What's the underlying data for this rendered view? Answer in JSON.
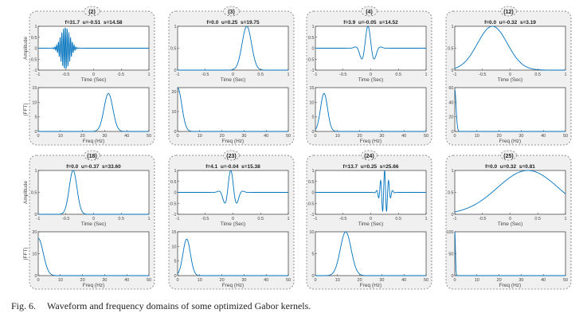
{
  "caption": {
    "label": "Fig. 6.",
    "text": "Waveform and frequency domains of some optimized Gabor kernels."
  },
  "chart_data": {
    "type": "line",
    "time_axis": {
      "xlabel": "Time (Sec)",
      "xlim": [
        -1,
        1
      ],
      "xticks": [
        -1,
        -0.5,
        0,
        0.5,
        1
      ],
      "xtick_labels": [
        "-1",
        "-0.5",
        "0",
        "0.5",
        "1"
      ],
      "ylabel": "Amplitude"
    },
    "freq_axis": {
      "xlabel": "Freq (Hz)",
      "xlim": [
        0,
        50
      ],
      "xticks": [
        0,
        10,
        20,
        30,
        40,
        50
      ],
      "xtick_labels": [
        "0",
        "10",
        "20",
        "30",
        "40",
        "50"
      ],
      "ylabel": "|FFT|"
    },
    "series_color": "#0072BD",
    "kernels": [
      {
        "id": "(2)",
        "title": "f=31.7  u=-0.51  s=14.58",
        "f": 31.7,
        "u": -0.51,
        "s": 14.58,
        "sigma": 0.08,
        "time_ylim": [
          -1,
          1
        ],
        "time_yticks": [
          "-1",
          "-0.5",
          "0",
          "0.5",
          "1"
        ],
        "fft_peak": 13,
        "fft_ylim": [
          0,
          15
        ],
        "fft_yticks": [
          "0",
          "5",
          "10",
          "15"
        ]
      },
      {
        "id": "(3)",
        "title": "f=0.0  u=0.25  s=19.75",
        "f": 0.0,
        "u": 0.25,
        "s": 19.75,
        "sigma": 0.085,
        "time_ylim": [
          0,
          1
        ],
        "time_yticks": [
          "0",
          "0.5",
          "1"
        ],
        "fft_peak": 22,
        "fft_ylim": [
          0,
          22
        ],
        "fft_yticks": [
          "0",
          "10",
          "20"
        ]
      },
      {
        "id": "(4)",
        "title": "f=3.9  u=-0.05  s=14.52",
        "f": 3.9,
        "u": -0.05,
        "s": 14.52,
        "sigma": 0.1,
        "time_ylim": [
          -1,
          1
        ],
        "time_yticks": [
          "-1",
          "-0.5",
          "0",
          "0.5",
          "1"
        ],
        "fft_peak": 13,
        "fft_ylim": [
          0,
          15
        ],
        "fft_yticks": [
          "0",
          "5",
          "10",
          "15"
        ]
      },
      {
        "id": "(12)",
        "title": "f=0.0  u=-0.32  s=3.19",
        "f": 0.0,
        "u": -0.32,
        "s": 3.19,
        "sigma": 0.27,
        "time_ylim": [
          0,
          1
        ],
        "time_yticks": [
          "0",
          "0.5",
          "1"
        ],
        "fft_peak": 57,
        "fft_ylim": [
          0,
          60
        ],
        "fft_yticks": [
          "0",
          "20",
          "40",
          "60"
        ]
      },
      {
        "id": "(18)",
        "title": "f=0.0  u=-0.37  s=33.60",
        "f": 0.0,
        "u": -0.37,
        "s": 33.6,
        "sigma": 0.07,
        "time_ylim": [
          0,
          1
        ],
        "time_yticks": [
          "0",
          "0.5",
          "1"
        ],
        "fft_peak": 17,
        "fft_ylim": [
          0,
          20
        ],
        "fft_yticks": [
          "0",
          "10",
          "20"
        ]
      },
      {
        "id": "(23)",
        "title": "f=4.1  u=-0.04  s=15.38",
        "f": 4.1,
        "u": -0.04,
        "s": 15.38,
        "sigma": 0.095,
        "time_ylim": [
          -1,
          1
        ],
        "time_yticks": [
          "-1",
          "-0.5",
          "0",
          "0.5",
          "1"
        ],
        "fft_peak": 12.5,
        "fft_ylim": [
          0,
          15
        ],
        "fft_yticks": [
          "0",
          "5",
          "10",
          "15"
        ]
      },
      {
        "id": "(24)",
        "title": "f=13.7  u=0.25  s=25.66",
        "f": 13.7,
        "u": 0.25,
        "s": 25.66,
        "sigma": 0.065,
        "time_ylim": [
          -1,
          1
        ],
        "time_yticks": [
          "-1",
          "-0.5",
          "0",
          "0.5",
          "1"
        ],
        "fft_peak": 10,
        "fft_ylim": [
          0,
          10
        ],
        "fft_yticks": [
          "0",
          "5",
          "10"
        ]
      },
      {
        "id": "(25)",
        "title": "f=0.0  u=0.32  s=0.81",
        "f": 0.0,
        "u": 0.32,
        "s": 0.81,
        "sigma": 0.55,
        "time_ylim": [
          0,
          1
        ],
        "time_yticks": [
          "0",
          "0.5",
          "1"
        ],
        "fft_peak": 100,
        "fft_ylim": [
          0,
          100
        ],
        "fft_yticks": [
          "0",
          "50",
          "100"
        ]
      }
    ]
  }
}
